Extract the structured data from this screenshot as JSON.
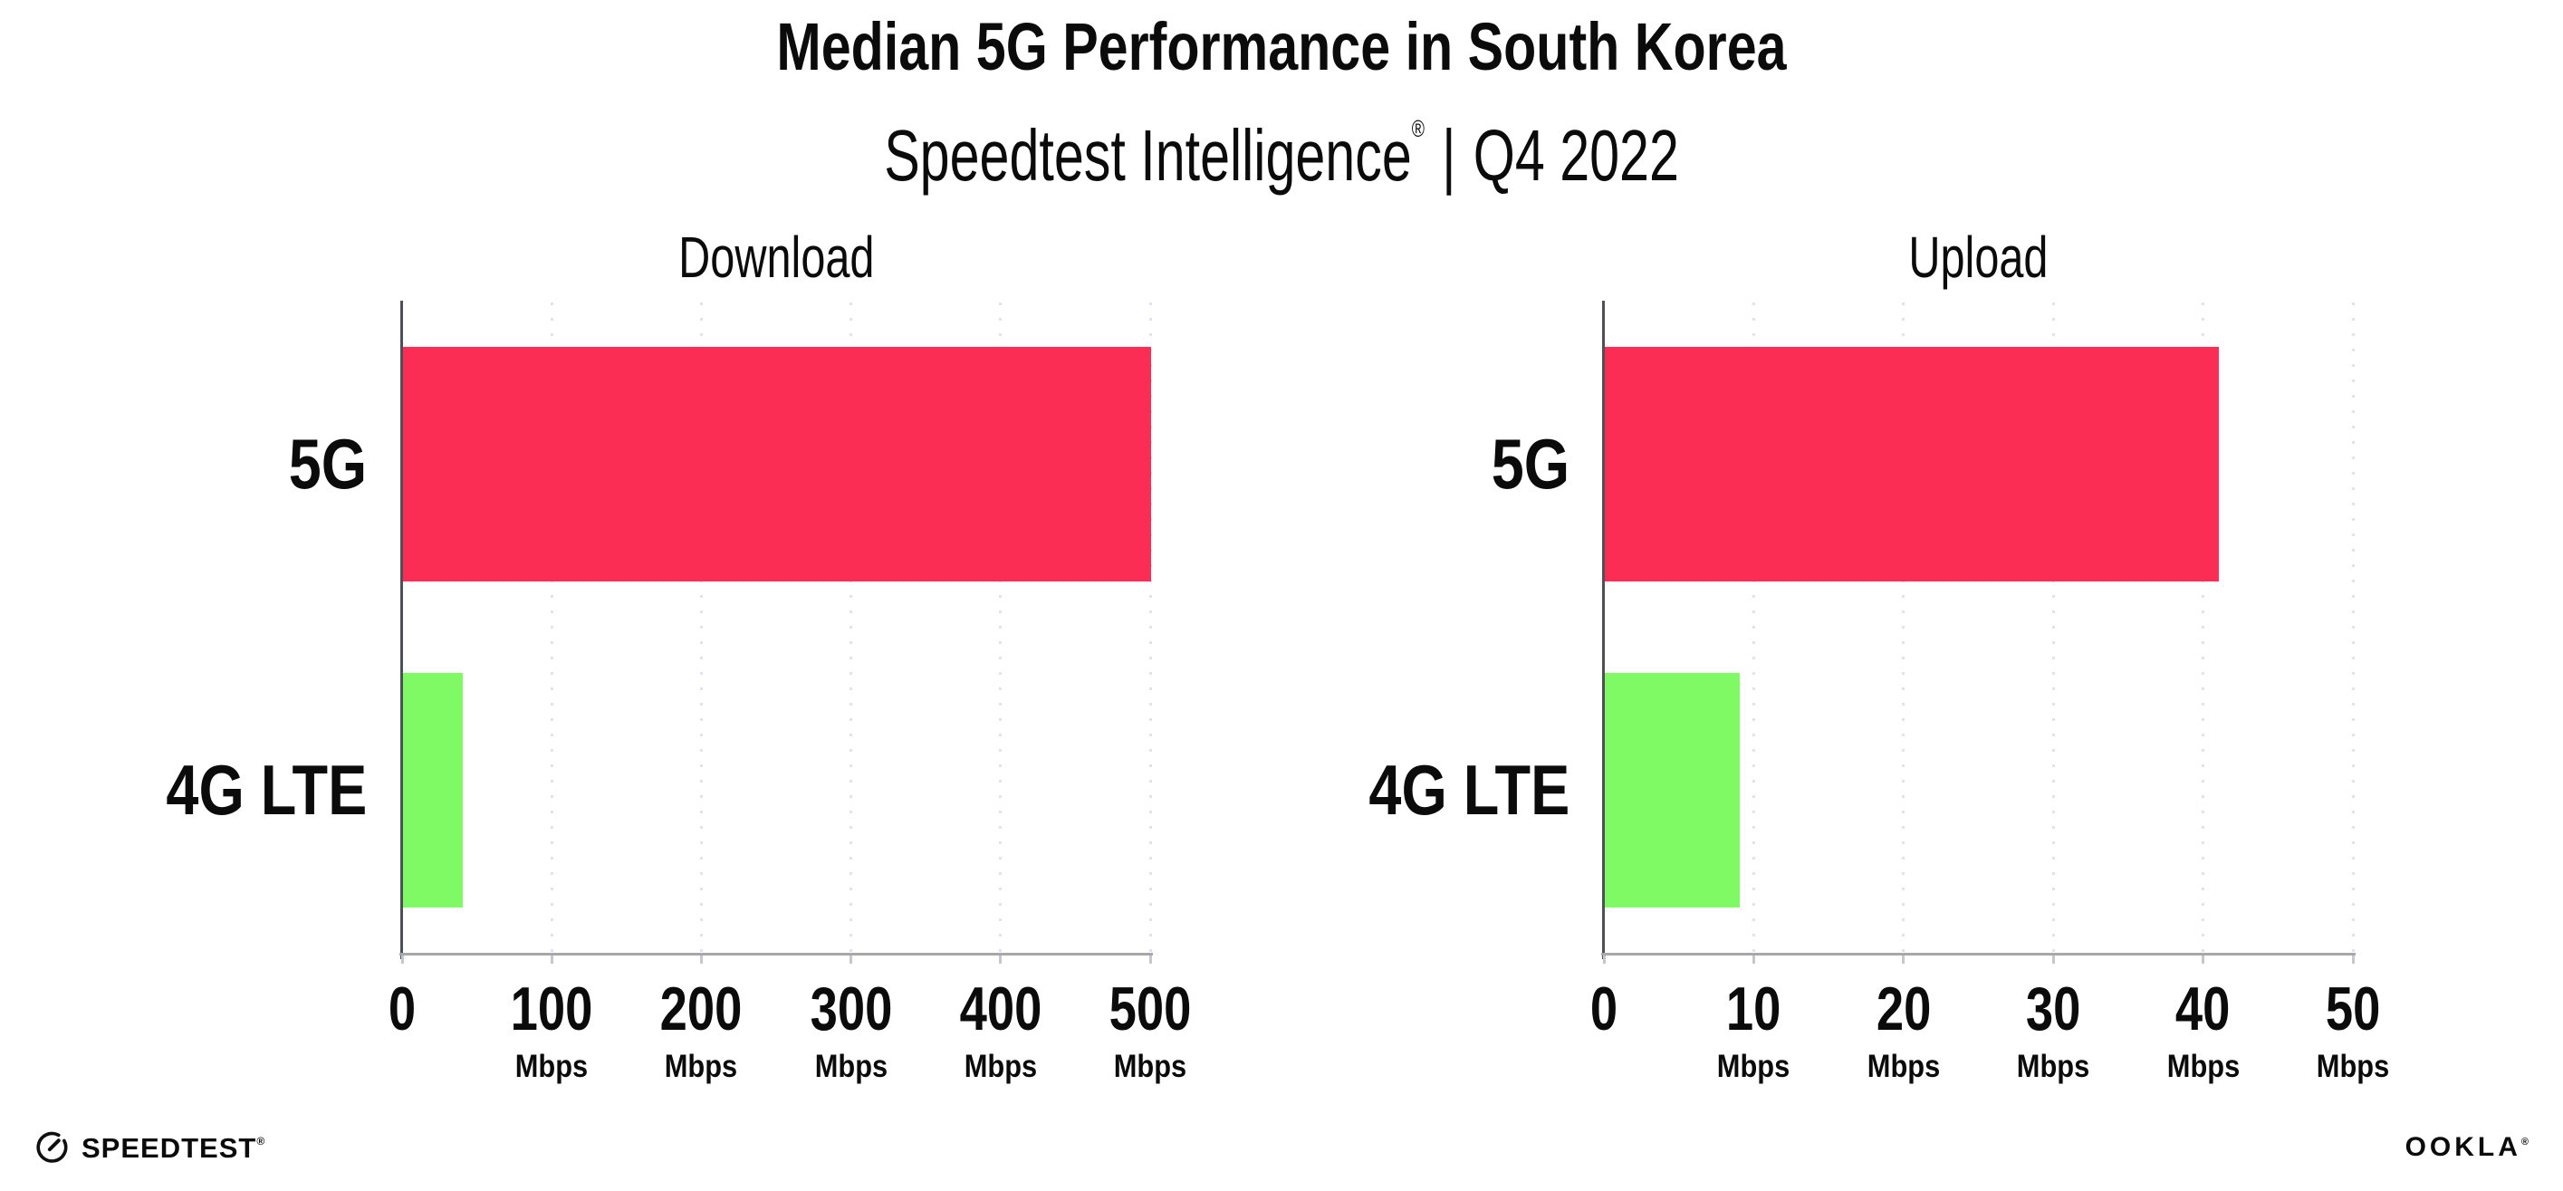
{
  "header": {
    "title": "Median 5G Performance in South Korea",
    "subtitle_brand": "Speedtest Intelligence",
    "subtitle_reg": "®",
    "subtitle_sep": "|",
    "subtitle_period": "Q4 2022"
  },
  "chart_data": [
    {
      "type": "bar",
      "orientation": "horizontal",
      "title": "Download",
      "categories": [
        "5G",
        "4G LTE"
      ],
      "values": [
        500,
        40
      ],
      "unit": "Mbps",
      "xlim": [
        0,
        500
      ],
      "xticks": [
        0,
        100,
        200,
        300,
        400,
        500
      ],
      "tick_unit_label": "Mbps",
      "bar_colors": [
        "#fb2d55",
        "#80fa64"
      ],
      "grid": "dotted-vertical",
      "legend": "none"
    },
    {
      "type": "bar",
      "orientation": "horizontal",
      "title": "Upload",
      "categories": [
        "5G",
        "4G LTE"
      ],
      "values": [
        41,
        9
      ],
      "unit": "Mbps",
      "xlim": [
        0,
        50
      ],
      "xticks": [
        0,
        10,
        20,
        30,
        40,
        50
      ],
      "tick_unit_label": "Mbps",
      "bar_colors": [
        "#fb2d55",
        "#80fa64"
      ],
      "grid": "dotted-vertical",
      "legend": "none"
    }
  ],
  "footer": {
    "speedtest_text": "SPEEDTEST",
    "speedtest_reg": "®",
    "ookla_text": "OOKLA",
    "ookla_reg": "®"
  },
  "colors": {
    "bar_5g": "#fb2d55",
    "bar_4g_lte": "#80fa64",
    "gridline": "#e2e2ee",
    "bottom_axis": "#a8a8a8",
    "left_spine": "#4d5056",
    "text": "#0b0b0c",
    "background": "#ffffff"
  }
}
